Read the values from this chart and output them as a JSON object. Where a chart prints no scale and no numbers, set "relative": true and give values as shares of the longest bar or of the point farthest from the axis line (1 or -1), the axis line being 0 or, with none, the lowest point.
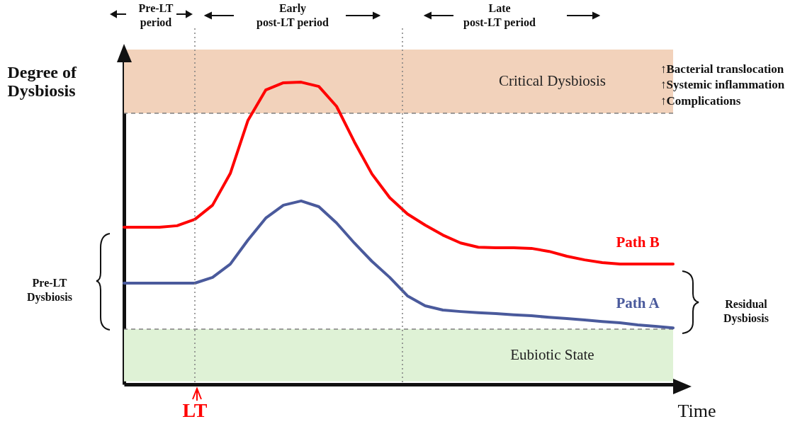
{
  "chart_data": {
    "type": "line",
    "relative": true,
    "ylabel": "Degree of Dysbiosis",
    "xlabel": "Time",
    "line_style": "solid",
    "categories": [
      null,
      null,
      null,
      null,
      null,
      null,
      null,
      null,
      null,
      null,
      null,
      null,
      null,
      null,
      null,
      null,
      null,
      null,
      null,
      null,
      null,
      null,
      null,
      null,
      null,
      null,
      null,
      null,
      null,
      null,
      null,
      null
    ],
    "series": [
      {
        "name": "Path B",
        "color": "#ff0000",
        "values": [
          0.52,
          0.52,
          0.52,
          0.525,
          0.546,
          0.593,
          0.698,
          0.874,
          0.974,
          0.998,
          1,
          0.986,
          0.92,
          0.803,
          0.696,
          0.618,
          0.564,
          0.527,
          0.494,
          0.468,
          0.454,
          0.452,
          0.452,
          0.45,
          0.44,
          0.424,
          0.412,
          0.403,
          0.398,
          0.398,
          0.398,
          0.398
        ]
      },
      {
        "name": "Path A",
        "color": "#4a5a9c",
        "values": [
          0.335,
          0.335,
          0.335,
          0.335,
          0.335,
          0.354,
          0.398,
          0.478,
          0.55,
          0.593,
          0.607,
          0.588,
          0.534,
          0.468,
          0.407,
          0.354,
          0.293,
          0.26,
          0.246,
          0.241,
          0.237,
          0.234,
          0.23,
          0.227,
          0.222,
          0.218,
          0.213,
          0.208,
          0.204,
          0.197,
          0.192,
          0.187
        ]
      }
    ],
    "bands": [
      {
        "axis": "y",
        "from": 0.897,
        "to": 1.108,
        "label": "Critical Dysbiosis",
        "color": "#f2d2bb"
      },
      {
        "axis": "y",
        "from": 0.01,
        "to": 0.183,
        "label": "Eubiotic State",
        "color": "#dff2d6"
      }
    ],
    "ref_lines": [
      {
        "axis": "y",
        "value": 0.897,
        "color": "#808080",
        "line_style": "dashed"
      },
      {
        "axis": "y",
        "value": 0.183,
        "color": "#808080",
        "line_style": "dashed"
      }
    ],
    "annotations": [
      "Pre-LT period",
      "Early post-LT period",
      "Late post-LT period",
      "↑Bacterial translocation",
      "↑Systemic inflammation",
      "↑Complications",
      "Pre-LT Dysbiosis",
      "Residual Dysbiosis",
      "LT"
    ]
  }
}
